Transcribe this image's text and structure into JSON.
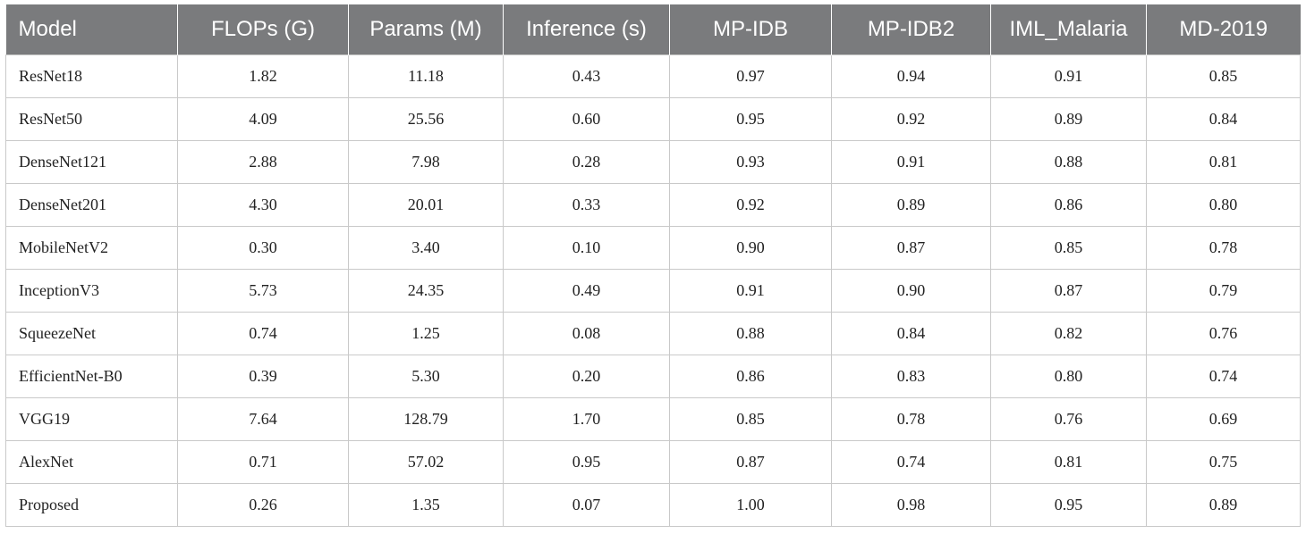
{
  "table": {
    "headers": [
      "Model",
      "FLOPs (G)",
      "Params (M)",
      "Inference (s)",
      "MP-IDB",
      "MP-IDB2",
      "IML_Malaria",
      "MD-2019"
    ],
    "rows": [
      [
        "ResNet18",
        "1.82",
        "11.18",
        "0.43",
        "0.97",
        "0.94",
        "0.91",
        "0.85"
      ],
      [
        "ResNet50",
        "4.09",
        "25.56",
        "0.60",
        "0.95",
        "0.92",
        "0.89",
        "0.84"
      ],
      [
        "DenseNet121",
        "2.88",
        "7.98",
        "0.28",
        "0.93",
        "0.91",
        "0.88",
        "0.81"
      ],
      [
        "DenseNet201",
        "4.30",
        "20.01",
        "0.33",
        "0.92",
        "0.89",
        "0.86",
        "0.80"
      ],
      [
        "MobileNetV2",
        "0.30",
        "3.40",
        "0.10",
        "0.90",
        "0.87",
        "0.85",
        "0.78"
      ],
      [
        "InceptionV3",
        "5.73",
        "24.35",
        "0.49",
        "0.91",
        "0.90",
        "0.87",
        "0.79"
      ],
      [
        "SqueezeNet",
        "0.74",
        "1.25",
        "0.08",
        "0.88",
        "0.84",
        "0.82",
        "0.76"
      ],
      [
        "EfficientNet-B0",
        "0.39",
        "5.30",
        "0.20",
        "0.86",
        "0.83",
        "0.80",
        "0.74"
      ],
      [
        "VGG19",
        "7.64",
        "128.79",
        "1.70",
        "0.85",
        "0.78",
        "0.76",
        "0.69"
      ],
      [
        "AlexNet",
        "0.71",
        "57.02",
        "0.95",
        "0.87",
        "0.74",
        "0.81",
        "0.75"
      ],
      [
        "Proposed",
        "0.26",
        "1.35",
        "0.07",
        "1.00",
        "0.98",
        "0.95",
        "0.89"
      ]
    ]
  },
  "colors": {
    "header_background": "#7a7b7d",
    "header_text": "#ffffff",
    "grid_line": "#c9c9c9"
  }
}
